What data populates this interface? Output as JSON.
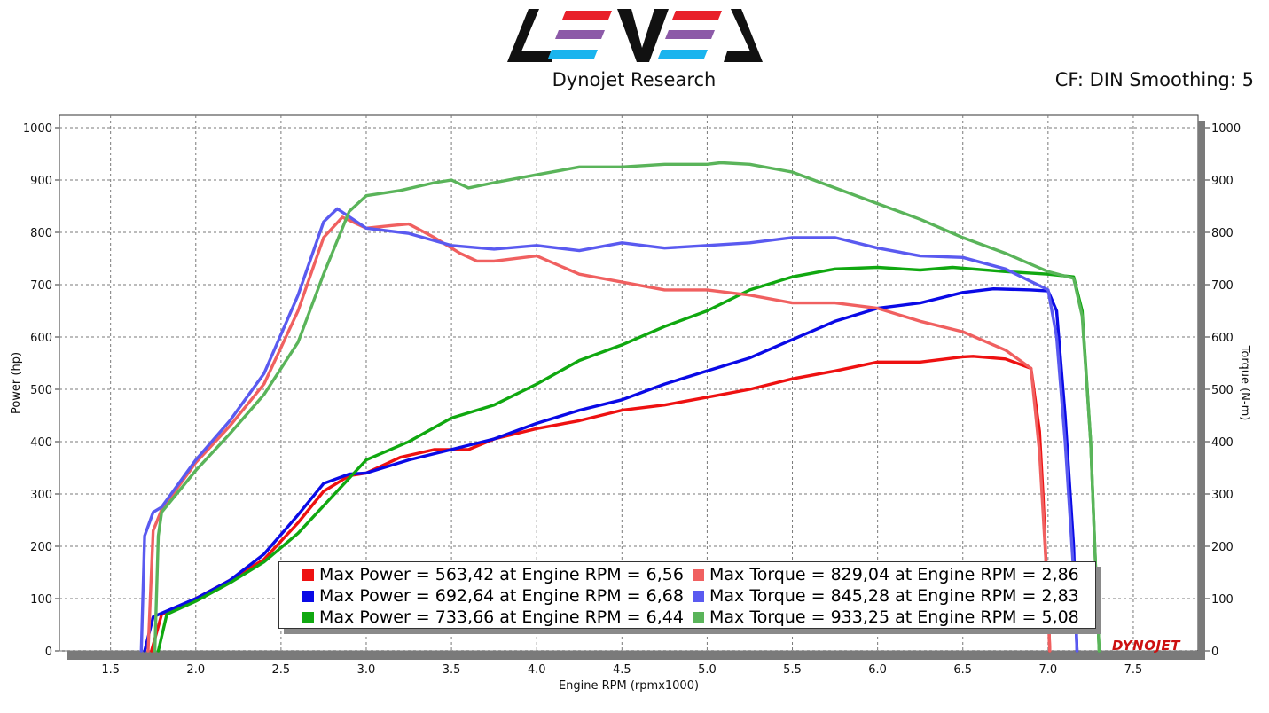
{
  "header": {
    "logo_name": "LEVEL",
    "subtitle": "Dynojet Research",
    "settings": "CF: DIN Smoothing: 5"
  },
  "badge": "DYNOJET",
  "colors": {
    "run1_power": "#ee1111",
    "run2_power": "#0a0ae6",
    "run3_power": "#10a810",
    "run1_torque": "#f06060",
    "run2_torque": "#5a5af0",
    "run3_torque": "#5ab45a",
    "logo_red": "#e8202a",
    "logo_purple": "#8c5aa8",
    "logo_cyan": "#1ab4ee"
  },
  "legend": [
    {
      "color": "#ee1111",
      "text": "Max Power = 563,42 at Engine RPM = 6,56"
    },
    {
      "color": "#0a0ae6",
      "text": "Max Power = 692,64 at Engine RPM = 6,68"
    },
    {
      "color": "#10a810",
      "text": "Max Power = 733,66 at Engine RPM = 6,44"
    },
    {
      "color": "#f06060",
      "text": "Max Torque = 829,04 at Engine RPM = 2,86"
    },
    {
      "color": "#5a5af0",
      "text": "Max Torque = 845,28 at Engine RPM = 2,83"
    },
    {
      "color": "#5ab45a",
      "text": "Max Torque = 933,25 at Engine RPM = 5,08"
    }
  ],
  "chart_data": {
    "type": "line",
    "title": "Dynojet Research",
    "xlabel": "Engine RPM (rpmx1000)",
    "ylabel_left": "Power (hp)",
    "ylabel_right": "Torque (N-m)",
    "xlim": [
      1.2,
      7.88
    ],
    "ylim_left": [
      0,
      1000
    ],
    "ylim_right": [
      0,
      1000
    ],
    "x_ticks": [
      "1.5",
      "2.0",
      "2.5",
      "3.0",
      "3.5",
      "4.0",
      "4.5",
      "5.0",
      "5.5",
      "6.0",
      "6.5",
      "7.0",
      "7.5"
    ],
    "x_tick_values": [
      1.5,
      2.0,
      2.5,
      3.0,
      3.5,
      4.0,
      4.5,
      5.0,
      5.5,
      6.0,
      6.5,
      7.0,
      7.5
    ],
    "y_ticks_left": [
      "0",
      "100",
      "200",
      "300",
      "400",
      "500",
      "600",
      "700",
      "800",
      "900",
      "1000"
    ],
    "y_ticks_right": [
      "0",
      "100",
      "200",
      "300",
      "400",
      "500",
      "600",
      "700",
      "800",
      "900",
      "1000"
    ],
    "y_tick_values": [
      0,
      100,
      200,
      300,
      400,
      500,
      600,
      700,
      800,
      900,
      1000
    ],
    "grid": true,
    "series": [
      {
        "name": "Power run 1",
        "axis": "left",
        "color": "#ee1111",
        "x": [
          1.74,
          1.8,
          2.0,
          2.2,
          2.4,
          2.6,
          2.75,
          2.9,
          3.0,
          3.2,
          3.4,
          3.6,
          3.75,
          4.0,
          4.25,
          4.5,
          4.75,
          5.0,
          5.25,
          5.5,
          5.75,
          6.0,
          6.25,
          6.5,
          6.56,
          6.75,
          6.9,
          6.95,
          6.97,
          7.0,
          7.01
        ],
        "y": [
          0,
          70,
          100,
          135,
          175,
          245,
          305,
          335,
          340,
          370,
          385,
          385,
          405,
          425,
          440,
          460,
          470,
          485,
          500,
          520,
          535,
          552,
          552,
          562,
          563,
          558,
          540,
          420,
          300,
          80,
          0
        ]
      },
      {
        "name": "Power run 2",
        "axis": "left",
        "color": "#0a0ae6",
        "x": [
          1.7,
          1.75,
          2.0,
          2.2,
          2.4,
          2.6,
          2.75,
          2.9,
          3.0,
          3.25,
          3.5,
          3.75,
          4.0,
          4.25,
          4.5,
          4.75,
          5.0,
          5.25,
          5.5,
          5.75,
          6.0,
          6.25,
          6.5,
          6.68,
          6.9,
          7.0,
          7.05,
          7.1,
          7.15,
          7.17
        ],
        "y": [
          0,
          65,
          100,
          135,
          185,
          260,
          320,
          338,
          340,
          365,
          385,
          405,
          435,
          460,
          480,
          510,
          535,
          560,
          595,
          630,
          655,
          665,
          685,
          692,
          690,
          688,
          650,
          450,
          200,
          0
        ]
      },
      {
        "name": "Power run 3",
        "axis": "left",
        "color": "#10a810",
        "x": [
          1.78,
          1.83,
          2.0,
          2.2,
          2.4,
          2.6,
          2.8,
          3.0,
          3.25,
          3.5,
          3.75,
          4.0,
          4.25,
          4.5,
          4.75,
          5.0,
          5.25,
          5.5,
          5.75,
          6.0,
          6.25,
          6.44,
          6.75,
          7.0,
          7.15,
          7.2,
          7.25,
          7.28,
          7.3
        ],
        "y": [
          0,
          70,
          95,
          130,
          170,
          225,
          295,
          365,
          400,
          445,
          470,
          510,
          555,
          585,
          620,
          650,
          690,
          715,
          730,
          733,
          728,
          733,
          725,
          720,
          715,
          650,
          400,
          150,
          0
        ]
      },
      {
        "name": "Torque run 1",
        "axis": "right",
        "color": "#f06060",
        "x": [
          1.72,
          1.75,
          1.8,
          2.0,
          2.2,
          2.4,
          2.6,
          2.75,
          2.86,
          3.0,
          3.15,
          3.25,
          3.4,
          3.55,
          3.65,
          3.75,
          4.0,
          4.25,
          4.5,
          4.75,
          5.0,
          5.25,
          5.5,
          5.75,
          6.0,
          6.25,
          6.5,
          6.75,
          6.9,
          6.95,
          7.0,
          7.01
        ],
        "y": [
          0,
          230,
          270,
          360,
          430,
          510,
          650,
          790,
          829,
          808,
          813,
          816,
          790,
          760,
          745,
          745,
          755,
          720,
          705,
          690,
          690,
          680,
          665,
          665,
          655,
          630,
          610,
          575,
          540,
          380,
          100,
          0
        ]
      },
      {
        "name": "Torque run 2",
        "axis": "right",
        "color": "#5a5af0",
        "x": [
          1.68,
          1.7,
          1.75,
          1.8,
          2.0,
          2.2,
          2.4,
          2.6,
          2.75,
          2.83,
          3.0,
          3.25,
          3.5,
          3.75,
          4.0,
          4.25,
          4.5,
          4.75,
          5.0,
          5.25,
          5.5,
          5.75,
          6.0,
          6.25,
          6.5,
          6.75,
          7.0,
          7.05,
          7.1,
          7.15,
          7.17
        ],
        "y": [
          0,
          220,
          265,
          275,
          365,
          440,
          530,
          680,
          820,
          845,
          808,
          798,
          775,
          768,
          775,
          765,
          780,
          770,
          775,
          780,
          790,
          790,
          770,
          755,
          752,
          730,
          690,
          600,
          400,
          150,
          0
        ]
      },
      {
        "name": "Torque run 3",
        "axis": "right",
        "color": "#5ab45a",
        "x": [
          1.76,
          1.78,
          1.8,
          2.0,
          2.2,
          2.4,
          2.6,
          2.75,
          2.9,
          3.0,
          3.2,
          3.4,
          3.5,
          3.6,
          3.75,
          4.0,
          4.25,
          4.5,
          4.75,
          5.0,
          5.08,
          5.25,
          5.5,
          5.75,
          6.0,
          6.25,
          6.5,
          6.75,
          7.0,
          7.15,
          7.2,
          7.25,
          7.28,
          7.3
        ],
        "y": [
          0,
          220,
          265,
          345,
          415,
          490,
          590,
          720,
          840,
          870,
          880,
          895,
          900,
          885,
          895,
          910,
          925,
          925,
          930,
          930,
          933,
          930,
          915,
          885,
          855,
          825,
          790,
          760,
          725,
          712,
          640,
          400,
          150,
          0
        ]
      }
    ]
  }
}
